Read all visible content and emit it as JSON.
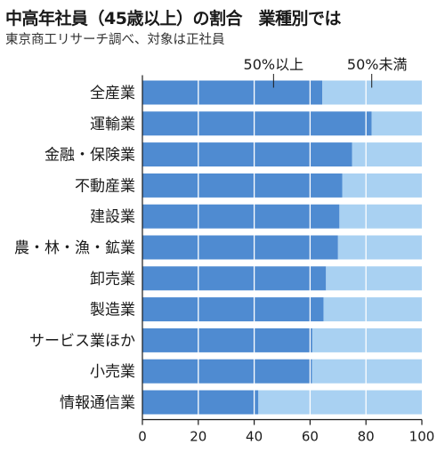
{
  "title": "中高年社員（45歳以上）の割合　業種別では",
  "subtitle": "東京商工リサーチ調べ、対象は正社員",
  "colors": {
    "above": "#4f8bd1",
    "below": "#a9d1f2",
    "grid": "#ffffff",
    "axis": "#1a1a1a"
  },
  "chart_data": {
    "type": "bar",
    "orientation": "horizontal",
    "stacked": true,
    "title": "中高年社員（45歳以上）の割合　業種別では",
    "subtitle": "東京商工リサーチ調べ、対象は正社員",
    "xlabel": "",
    "ylabel": "",
    "xlim": [
      0,
      100
    ],
    "xticks": [
      "0",
      "20",
      "40",
      "60",
      "80",
      "100"
    ],
    "grid": true,
    "legend": "top",
    "categories": [
      "全産業",
      "運輸業",
      "金融・保険業",
      "不動産業",
      "建設業",
      "農・林・漁・鉱業",
      "卸売業",
      "製造業",
      "サービス業ほか",
      "小売業",
      "情報通信業"
    ],
    "series": [
      {
        "name": "50%以上",
        "values": [
          64.4,
          82.0,
          75.0,
          71.5,
          70.5,
          70.0,
          65.7,
          64.8,
          60.8,
          60.7,
          41.5
        ]
      },
      {
        "name": "50%未満",
        "values": [
          35.6,
          18.0,
          25.0,
          28.5,
          29.5,
          30.0,
          34.3,
          35.2,
          39.2,
          39.3,
          58.5
        ]
      }
    ]
  }
}
